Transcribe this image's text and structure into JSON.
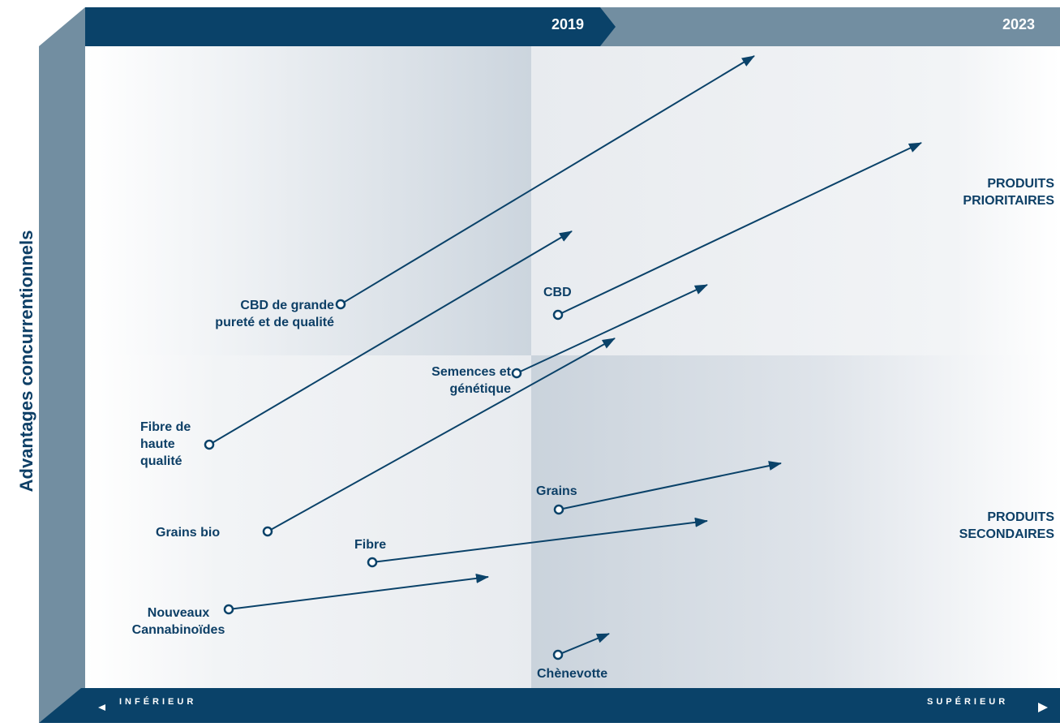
{
  "timeline": {
    "start_year": "2019",
    "end_year": "2023"
  },
  "y_axis_title": "Advantages concurrentionnels",
  "x_axis": {
    "low_label": "INFÉRIEUR",
    "high_label": "SUPÉRIEUR"
  },
  "quadrant_labels": {
    "top_right": [
      "PRODUITS",
      "PRIORITAIRES"
    ],
    "bottom_right": [
      "PRODUITS",
      "SECONDAIRES"
    ]
  },
  "products": [
    {
      "name": [
        "CBD de grande",
        "pureté et de qualité"
      ]
    },
    {
      "name": [
        "CBD"
      ]
    },
    {
      "name": [
        "Semences et",
        "génétique"
      ]
    },
    {
      "name": [
        "Fibre de",
        "haute",
        "qualité"
      ]
    },
    {
      "name": [
        "Grains bio"
      ]
    },
    {
      "name": [
        "Grains"
      ]
    },
    {
      "name": [
        "Fibre"
      ]
    },
    {
      "name": [
        "Nouveaux",
        "Cannabinoïdes"
      ]
    },
    {
      "name": [
        "Chènevotte"
      ]
    }
  ],
  "colors": {
    "navy": "#0a4269",
    "slate": "#728ea1",
    "shade_dark": "#cad3dc",
    "shade_light": "#eceef1"
  }
}
